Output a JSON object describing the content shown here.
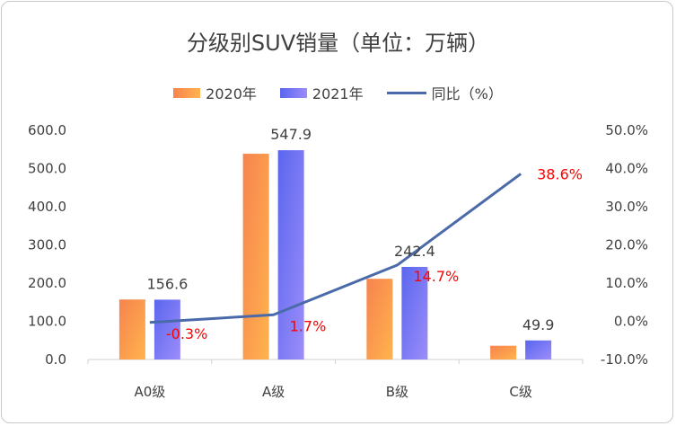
{
  "chart_data": {
    "type": "bar",
    "title": "分级别SUV销量（单位：万辆）",
    "categories": [
      "A0级",
      "A级",
      "B级",
      "C级"
    ],
    "series": [
      {
        "name": "2020年",
        "type": "bar",
        "axis": "left",
        "values": [
          157.1,
          538.7,
          211.3,
          36.0
        ],
        "labels": [
          "",
          "",
          "",
          ""
        ]
      },
      {
        "name": "2021年",
        "type": "bar",
        "axis": "left",
        "values": [
          156.6,
          547.9,
          242.4,
          49.9
        ],
        "labels": [
          "156.6",
          "547.9",
          "242.4",
          "49.9"
        ]
      },
      {
        "name": "同比（%）",
        "type": "line",
        "axis": "right",
        "values": [
          -0.3,
          1.7,
          14.7,
          38.6
        ],
        "labels": [
          "-0.3%",
          "1.7%",
          "14.7%",
          "38.6%"
        ]
      }
    ],
    "y_left": {
      "min": 0,
      "max": 600,
      "step": 100,
      "ticks": [
        "0.0",
        "100.0",
        "200.0",
        "300.0",
        "400.0",
        "500.0",
        "600.0"
      ]
    },
    "y_right": {
      "min": -10,
      "max": 50,
      "step": 10,
      "ticks": [
        "-10.0%",
        "0.0%",
        "10.0%",
        "20.0%",
        "30.0%",
        "40.0%",
        "50.0%"
      ]
    },
    "legend_position": "top",
    "grid": false,
    "colors": {
      "bar2020_from": "#f7834f",
      "bar2020_to": "#ffb34d",
      "bar2021_from": "#5a66ee",
      "bar2021_to": "#9c8dfa",
      "line": "#4a6aaa",
      "yoy_label": "#ff0000"
    }
  }
}
